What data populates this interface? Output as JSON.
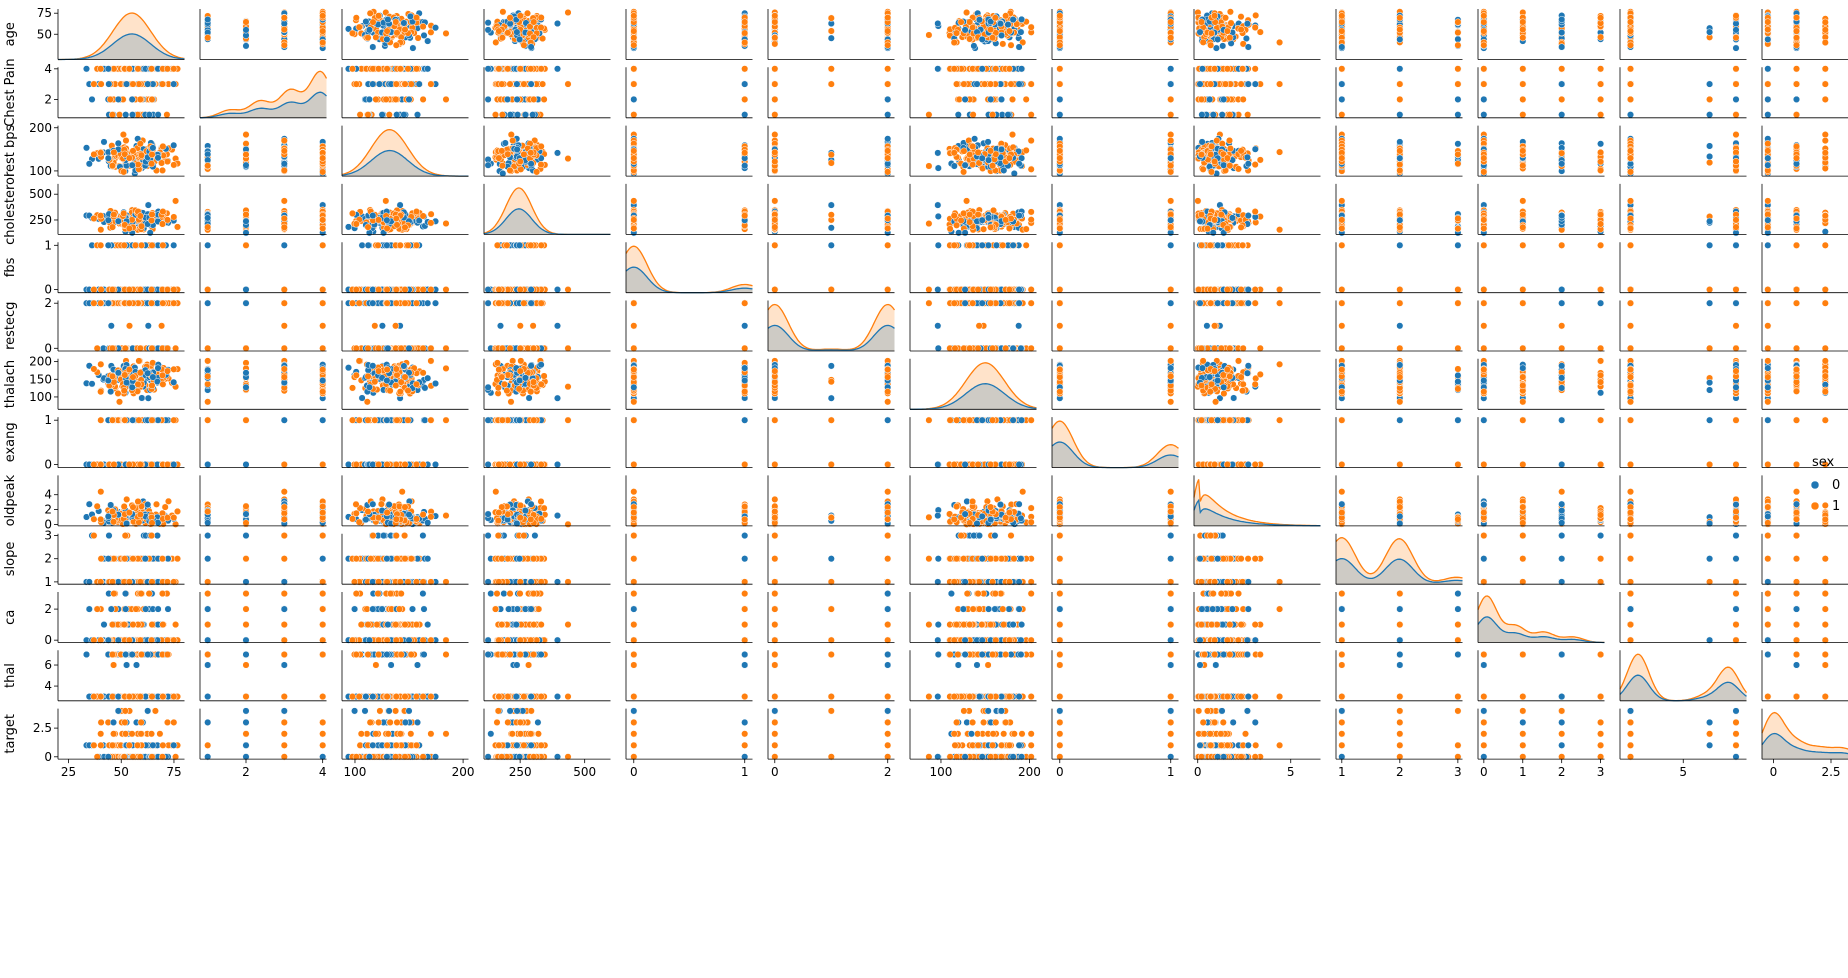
{
  "chart_data": {
    "type": "scatter",
    "kind": "pairplot",
    "hue": "sex",
    "legend": {
      "title": "sex",
      "placement": "right",
      "entries": [
        {
          "label": "0",
          "color": "#1f77b4"
        },
        {
          "label": "1",
          "color": "#ff7f0e"
        }
      ]
    },
    "variables": [
      {
        "name": "age",
        "range": [
          20,
          80
        ],
        "ticks": [
          50,
          75
        ],
        "xticks": [
          25,
          50,
          75
        ],
        "dist": "cont",
        "center": 55,
        "spread": 9,
        "min": 29,
        "max": 77
      },
      {
        "name": "Chest Pain",
        "range": [
          0.8,
          4.1
        ],
        "ticks": [
          2,
          4
        ],
        "xticks": [
          0,
          2,
          4
        ],
        "dist": "levels",
        "levels": [
          1,
          2,
          3,
          4
        ],
        "weights": [
          0.08,
          0.17,
          0.28,
          0.47
        ]
      },
      {
        "name": "rest bps",
        "range": [
          88,
          205
        ],
        "ticks": [
          100,
          200
        ],
        "xticks": [
          100,
          200
        ],
        "dist": "cont",
        "center": 132,
        "spread": 17,
        "min": 94,
        "max": 200
      },
      {
        "name": "cholesterol",
        "range": [
          110,
          600
        ],
        "ticks": [
          250,
          500
        ],
        "xticks": [
          250,
          500
        ],
        "dist": "cont",
        "center": 245,
        "spread": 50,
        "min": 126,
        "max": 564
      },
      {
        "name": "fbs",
        "range": [
          -0.07,
          1.07
        ],
        "ticks": [
          0,
          1
        ],
        "xticks": [
          0,
          1
        ],
        "dist": "levels",
        "levels": [
          0,
          1
        ],
        "weights": [
          0.85,
          0.15
        ]
      },
      {
        "name": "restecg",
        "range": [
          -0.12,
          2.12
        ],
        "ticks": [
          0,
          2
        ],
        "xticks": [
          0,
          2
        ],
        "dist": "levels",
        "levels": [
          0,
          1,
          2
        ],
        "weights": [
          0.49,
          0.02,
          0.49
        ]
      },
      {
        "name": "thalach",
        "range": [
          65,
          208
        ],
        "ticks": [
          100,
          150,
          200
        ],
        "xticks": [
          100,
          200
        ],
        "dist": "cont",
        "center": 150,
        "spread": 22,
        "min": 71,
        "max": 202
      },
      {
        "name": "exang",
        "range": [
          -0.07,
          1.07
        ],
        "ticks": [
          0,
          1
        ],
        "xticks": [
          0,
          1
        ],
        "dist": "levels",
        "levels": [
          0,
          1
        ],
        "weights": [
          0.67,
          0.33
        ]
      },
      {
        "name": "oldpeak",
        "range": [
          -0.2,
          6.6
        ],
        "ticks": [
          0,
          2,
          4
        ],
        "xticks": [
          0,
          5
        ],
        "dist": "cont",
        "center": 1.0,
        "spread": 1.1,
        "min": 0,
        "max": 6.2
      },
      {
        "name": "slope",
        "range": [
          0.9,
          3.08
        ],
        "ticks": [
          1,
          2,
          3
        ],
        "xticks": [
          1,
          2,
          3
        ],
        "dist": "levels",
        "levels": [
          1,
          2,
          3
        ],
        "weights": [
          0.47,
          0.46,
          0.07
        ]
      },
      {
        "name": "ca",
        "range": [
          -0.15,
          3.1
        ],
        "ticks": [
          0,
          2
        ],
        "xticks": [
          0,
          1,
          2,
          3,
          4
        ],
        "dist": "levels",
        "levels": [
          0,
          1,
          2,
          3
        ],
        "weights": [
          0.59,
          0.21,
          0.13,
          0.07
        ]
      },
      {
        "name": "thal",
        "range": [
          2.6,
          7.4
        ],
        "ticks": [
          4,
          6
        ],
        "xticks": [
          2.5,
          5.0,
          7.5
        ],
        "dist": "levels",
        "levels": [
          3,
          6,
          7
        ],
        "weights": [
          0.55,
          0.06,
          0.39
        ]
      },
      {
        "name": "target",
        "range": [
          -0.2,
          4.2
        ],
        "ticks": [
          0.0,
          2.5
        ],
        "xticks": [
          0.0,
          2.5,
          5.0
        ],
        "dist": "levels",
        "levels": [
          0,
          1,
          2,
          3,
          4
        ],
        "weights": [
          0.54,
          0.18,
          0.12,
          0.12,
          0.04
        ]
      }
    ],
    "diag_ranges": [
      [
        20,
        80
      ],
      [
        0,
        4.2
      ],
      [
        88,
        205
      ],
      [
        110,
        600
      ],
      [
        -0.07,
        1.07
      ],
      [
        -0.12,
        2.12
      ],
      [
        65,
        208
      ],
      [
        -0.07,
        1.07
      ],
      [
        -0.3,
        6.6
      ],
      [
        0.9,
        3.1
      ],
      [
        -0.3,
        4.1
      ],
      [
        2.2,
        7.8
      ],
      [
        -0.5,
        5.0
      ]
    ]
  }
}
